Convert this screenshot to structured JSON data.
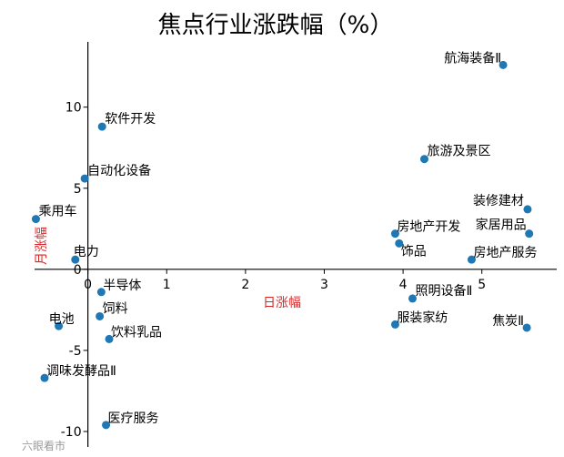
{
  "chart_data": {
    "type": "scatter",
    "title": "焦点行业涨跌幅（%）",
    "xlabel": "日涨幅",
    "ylabel": "月涨幅",
    "xlim": [
      -0.7,
      5.95
    ],
    "ylim": [
      -10.9,
      13.8
    ],
    "xticks": [
      0,
      1,
      2,
      3,
      4,
      5
    ],
    "yticks": [
      -10,
      -5,
      0,
      5,
      10
    ],
    "grid": false,
    "point_color": "#1f77b4",
    "axis_label_color": "#d62728",
    "points": [
      {
        "label": "航海装备Ⅱ",
        "x": 5.27,
        "y": 12.6
      },
      {
        "label": "软件开发",
        "x": 0.18,
        "y": 8.8
      },
      {
        "label": "旅游及景区",
        "x": 4.27,
        "y": 6.8
      },
      {
        "label": "自动化设备",
        "x": -0.04,
        "y": 5.6
      },
      {
        "label": "装修建材",
        "x": 5.58,
        "y": 3.7
      },
      {
        "label": "乘用车",
        "x": -0.66,
        "y": 3.1
      },
      {
        "label": "房地产开发",
        "x": 3.9,
        "y": 2.2
      },
      {
        "label": "家居用品",
        "x": 5.6,
        "y": 2.2
      },
      {
        "label": "饰品",
        "x": 3.95,
        "y": 1.6
      },
      {
        "label": "房地产服务",
        "x": 4.87,
        "y": 0.6
      },
      {
        "label": "电力",
        "x": -0.16,
        "y": 0.6
      },
      {
        "label": "半导体",
        "x": 0.17,
        "y": -1.4
      },
      {
        "label": "照明设备Ⅱ",
        "x": 4.12,
        "y": -1.8
      },
      {
        "label": "饲料",
        "x": 0.15,
        "y": -2.9
      },
      {
        "label": "电池",
        "x": -0.37,
        "y": -3.5
      },
      {
        "label": "服装家纺",
        "x": 3.9,
        "y": -3.4
      },
      {
        "label": "焦炭Ⅱ",
        "x": 5.57,
        "y": -3.6
      },
      {
        "label": "饮料乳品",
        "x": 0.27,
        "y": -4.3
      },
      {
        "label": "调味发酵品Ⅱ",
        "x": -0.55,
        "y": -6.7
      },
      {
        "label": "医疗服务",
        "x": 0.23,
        "y": -9.6
      }
    ]
  },
  "watermark": "六眼看市"
}
